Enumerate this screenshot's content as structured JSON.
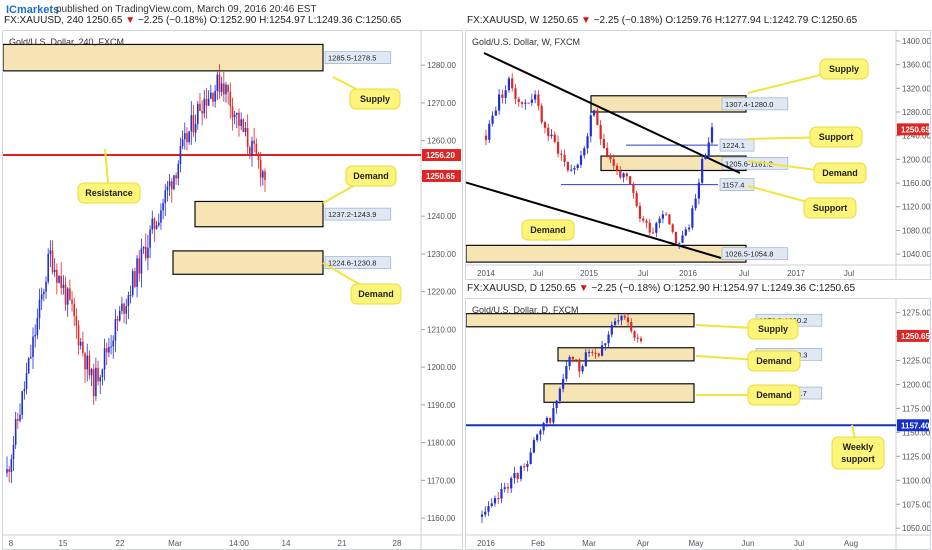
{
  "header": {
    "brand": "ICmarkets",
    "published": "published on TradingView.com, March 09, 2016 20:46 EST"
  },
  "charts": [
    {
      "id": "h4",
      "symbol_line": {
        "sym": "FX:XAUUSD, 240",
        "price": "1250.65",
        "chg": "−2.25 (−0.18%)",
        "o": "O:1252.90",
        "h": "H:1254.97",
        "l": "L:1249.36",
        "c": "C:1250.65"
      },
      "title": "Gold/U.S. Dollar, 240, FXCM",
      "y_ticks": [
        "1280.00",
        "1270.00",
        "1260.00",
        "1250.00",
        "1240.00",
        "1230.00",
        "1220.00",
        "1210.00",
        "1200.00",
        "1190.00",
        "1180.00",
        "1170.00",
        "1160.00"
      ],
      "x_ticks": [
        "8",
        "15",
        "22",
        "Mar",
        "14:00",
        "14",
        "21",
        "28"
      ],
      "zone_labels": [
        "1285.5-1278.5",
        "1237.2-1243.9",
        "1224.6-1230.8"
      ],
      "price_tags": [
        "1256.20",
        "1250.65"
      ],
      "callouts": [
        "Supply",
        "Resistance",
        "Demand",
        "Demand"
      ]
    },
    {
      "id": "weekly",
      "symbol_line": {
        "sym": "FX:XAUUSD, W",
        "price": "1250.65",
        "chg": "−2.25 (−0.18%)",
        "o": "O:1259.76",
        "h": "H:1277.94",
        "l": "L:1242.79",
        "c": "C:1250.65"
      },
      "title": "Gold/U.S. Dollar, W, FXCM",
      "y_ticks": [
        "1400.00",
        "1360.00",
        "1320.00",
        "1280.00",
        "1240.00",
        "1200.00",
        "1160.00",
        "1120.00",
        "1080.00",
        "1040.00"
      ],
      "x_ticks": [
        "2014",
        "Jul",
        "2015",
        "Jul",
        "2016",
        "Jul",
        "2017",
        "Jul"
      ],
      "zone_labels": [
        "1307.4-1280.0",
        "1224.1",
        "1205.6-1181.2",
        "1157.4",
        "1026.5-1054.8"
      ],
      "price_tags": [
        "1250.65"
      ],
      "callouts": [
        "Supply",
        "Support",
        "Demand",
        "Support",
        "Demand"
      ]
    },
    {
      "id": "daily",
      "symbol_line": {
        "sym": "FX:XAUUSD, D",
        "price": "1250.65",
        "chg": "−2.25 (−0.18%)",
        "o": "O:1252.90",
        "h": "H:1254.97",
        "l": "L:1249.36",
        "c": "C:1250.65"
      },
      "title": "Gold/U.S. Dollar, D, FXCM",
      "y_ticks": [
        "1275.00",
        "1250.00",
        "1225.00",
        "1200.00",
        "1175.00",
        "1150.00",
        "1125.00",
        "1100.00",
        "1075.00",
        "1050.00"
      ],
      "x_ticks": [
        "2016",
        "Feb",
        "Mar",
        "Apr",
        "May",
        "Jun",
        "Jul",
        "Aug"
      ],
      "zone_labels": [
        "1273.9-1260.2",
        "1224.6-1238.3",
        "1181.4-1200.7"
      ],
      "price_tags": [
        "1250.65",
        "1157.40"
      ],
      "callouts": [
        "Supply",
        "Demand",
        "Demand",
        "Weekly support"
      ]
    }
  ],
  "chart_data": [
    {
      "type": "candlestick",
      "title": "Gold/U.S. Dollar, 240, FXCM",
      "ylim": [
        1155,
        1288
      ],
      "x": [
        "8",
        "15",
        "22",
        "Mar",
        "14:00",
        "14",
        "21",
        "28"
      ],
      "close_approx": [
        1172,
        1200,
        1230,
        1215,
        1195,
        1210,
        1225,
        1240,
        1255,
        1270,
        1276,
        1262,
        1250.65
      ],
      "horizontal_lines": [
        {
          "value": 1256.2,
          "label": "Resistance"
        }
      ],
      "zones": [
        {
          "label": "Supply",
          "range": [
            1278.5,
            1285.5
          ]
        },
        {
          "label": "Demand",
          "range": [
            1237.2,
            1243.9
          ]
        },
        {
          "label": "Demand",
          "range": [
            1224.6,
            1230.8
          ]
        }
      ],
      "last": 1250.65
    },
    {
      "type": "candlestick",
      "title": "Gold/U.S. Dollar, W, FXCM",
      "ylim": [
        1025,
        1410
      ],
      "x": [
        "2014",
        "Jul",
        "2015",
        "Jul",
        "2016",
        "Jul",
        "2017",
        "Jul"
      ],
      "close_approx": [
        1240,
        1300,
        1330,
        1290,
        1310,
        1250,
        1220,
        1180,
        1200,
        1280,
        1220,
        1180,
        1160,
        1100,
        1080,
        1120,
        1060,
        1080,
        1180,
        1250
      ],
      "zones": [
        {
          "label": "Supply",
          "range": [
            1280.0,
            1307.4
          ]
        },
        {
          "label": "Demand",
          "range": [
            1181.2,
            1205.6
          ]
        },
        {
          "label": "Demand",
          "range": [
            1026.5,
            1054.8
          ]
        }
      ],
      "horizontal_lines": [
        {
          "value": 1224.1,
          "label": "Support"
        },
        {
          "value": 1157.4,
          "label": "Support"
        }
      ],
      "last": 1250.65
    },
    {
      "type": "candlestick",
      "title": "Gold/U.S. Dollar, D, FXCM",
      "ylim": [
        1045,
        1285
      ],
      "x": [
        "2016",
        "Feb",
        "Mar",
        "Apr",
        "May",
        "Jun",
        "Jul",
        "Aug"
      ],
      "close_approx": [
        1062,
        1070,
        1085,
        1098,
        1105,
        1120,
        1140,
        1155,
        1170,
        1200,
        1230,
        1215,
        1240,
        1232,
        1248,
        1262,
        1270,
        1255,
        1250.65
      ],
      "zones": [
        {
          "label": "Supply",
          "range": [
            1260.2,
            1273.9
          ]
        },
        {
          "label": "Demand",
          "range": [
            1224.6,
            1238.3
          ]
        },
        {
          "label": "Demand",
          "range": [
            1181.4,
            1200.7
          ]
        }
      ],
      "horizontal_lines": [
        {
          "value": 1157.4,
          "label": "Weekly support"
        }
      ],
      "last": 1250.65
    }
  ]
}
